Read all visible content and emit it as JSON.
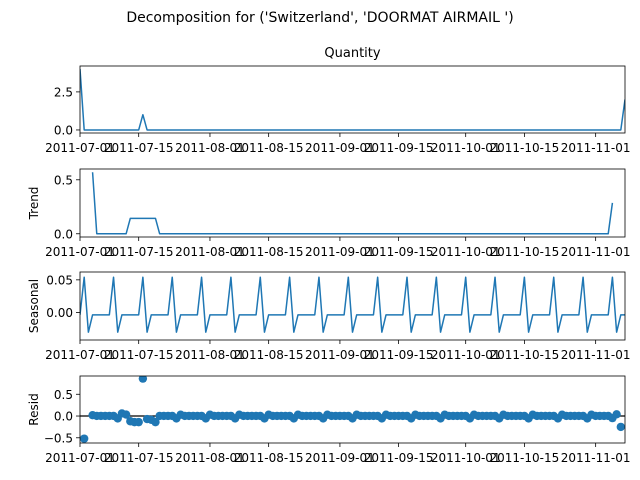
{
  "chart_data": {
    "type": "line",
    "suptitle": "Decomposition for ('Switzerland', 'DOORMAT AIRMAIL ')",
    "date_start": "2011-07-01",
    "date_end": "2011-11-08",
    "x_tick_dates": [
      "2011-07-01",
      "2011-07-15",
      "2011-08-01",
      "2011-08-15",
      "2011-09-01",
      "2011-09-15",
      "2011-10-01",
      "2011-10-15",
      "2011-11-01"
    ],
    "x_tick_labels": [
      "2011-07-01",
      "2011-07-15",
      "2011-08-01",
      "2011-08-15",
      "2011-09-01",
      "2011-09-15",
      "2011-10-01",
      "2011-10-15",
      "2011-11-01"
    ],
    "line_color": "#1f77b4",
    "panels": [
      {
        "id": "observed",
        "kind": "line",
        "title": "Quantity",
        "ylabel": "",
        "ylim": [
          -0.2,
          4.2
        ],
        "yticks": [
          0.0,
          2.5
        ],
        "ytick_labels": [
          "0.0",
          "2.5"
        ],
        "points": [
          [
            "2011-07-01",
            4.0
          ],
          [
            "2011-07-02",
            0.0
          ],
          [
            "2011-07-15",
            0.0
          ],
          [
            "2011-07-16",
            1.0
          ],
          [
            "2011-07-17",
            0.0
          ],
          [
            "2011-11-07",
            0.0
          ],
          [
            "2011-11-08",
            2.0
          ]
        ]
      },
      {
        "id": "trend",
        "kind": "line",
        "title": "",
        "ylabel": "Trend",
        "ylim": [
          -0.03,
          0.6
        ],
        "yticks": [
          0.0,
          0.5
        ],
        "ytick_labels": [
          "0.0",
          "0.5"
        ],
        "points": [
          [
            "2011-07-04",
            0.57
          ],
          [
            "2011-07-05",
            0.0
          ],
          [
            "2011-07-12",
            0.0
          ],
          [
            "2011-07-13",
            0.143
          ],
          [
            "2011-07-19",
            0.143
          ],
          [
            "2011-07-20",
            0.0
          ],
          [
            "2011-11-04",
            0.0
          ],
          [
            "2011-11-05",
            0.286
          ]
        ]
      },
      {
        "id": "seasonal",
        "kind": "seasonal",
        "title": "",
        "ylabel": "Seasonal",
        "ylim": [
          -0.042,
          0.062
        ],
        "yticks": [
          0.0,
          0.05
        ],
        "ytick_labels": [
          "0.00",
          "0.05"
        ],
        "pattern": [
          0.054,
          -0.03,
          -0.0035,
          -0.0035,
          -0.0035,
          -0.0035,
          -0.0035
        ],
        "pattern_start": "2011-07-02",
        "pattern_end": "2011-11-08",
        "lead_points": [
          [
            "2011-07-01",
            -0.0035
          ]
        ]
      },
      {
        "id": "resid",
        "kind": "scatter",
        "title": "",
        "ylabel": "Resid",
        "ylim": [
          -0.62,
          0.92
        ],
        "yticks": [
          -0.5,
          0.0,
          0.5
        ],
        "ytick_labels": [
          "−0.5",
          "0.0",
          "0.5"
        ],
        "zero_line": true,
        "points": [
          [
            "2011-07-04",
            0.02
          ],
          [
            "2011-07-05",
            0.003
          ],
          [
            "2011-07-06",
            0.003
          ],
          [
            "2011-07-07",
            0.003
          ],
          [
            "2011-07-08",
            0.003
          ],
          [
            "2011-07-09",
            0.003
          ],
          [
            "2011-07-10",
            -0.054
          ],
          [
            "2011-07-11",
            0.06
          ],
          [
            "2011-07-12",
            0.033
          ],
          [
            "2011-07-13",
            -0.12
          ],
          [
            "2011-07-14",
            -0.14
          ],
          [
            "2011-07-15",
            -0.14
          ],
          [
            "2011-07-16",
            0.86
          ],
          [
            "2011-07-17",
            -0.07
          ],
          [
            "2011-07-18",
            -0.086
          ],
          [
            "2011-07-19",
            -0.14
          ],
          [
            "2011-07-20",
            0.003
          ],
          [
            "2011-07-21",
            0.003
          ],
          [
            "2011-07-22",
            0.003
          ],
          [
            "2011-07-23",
            0.003
          ],
          [
            "2011-07-24",
            -0.054
          ],
          [
            "2011-07-25",
            0.03
          ],
          [
            "2011-07-26",
            0.003
          ],
          [
            "2011-07-27",
            0.003
          ],
          [
            "2011-07-28",
            0.003
          ],
          [
            "2011-07-29",
            0.003
          ],
          [
            "2011-07-30",
            0.003
          ],
          [
            "2011-07-31",
            -0.054
          ],
          [
            "2011-08-01",
            0.03
          ],
          [
            "2011-08-02",
            0.003
          ],
          [
            "2011-08-03",
            0.003
          ],
          [
            "2011-08-04",
            0.003
          ],
          [
            "2011-08-05",
            0.003
          ],
          [
            "2011-08-06",
            0.003
          ],
          [
            "2011-08-07",
            -0.054
          ],
          [
            "2011-08-08",
            0.03
          ],
          [
            "2011-08-09",
            0.003
          ],
          [
            "2011-08-10",
            0.003
          ],
          [
            "2011-08-11",
            0.003
          ],
          [
            "2011-08-12",
            0.003
          ],
          [
            "2011-08-13",
            0.003
          ],
          [
            "2011-08-14",
            -0.054
          ],
          [
            "2011-08-15",
            0.03
          ],
          [
            "2011-08-16",
            0.003
          ],
          [
            "2011-08-17",
            0.003
          ],
          [
            "2011-08-18",
            0.003
          ],
          [
            "2011-08-19",
            0.003
          ],
          [
            "2011-08-20",
            0.003
          ],
          [
            "2011-08-21",
            -0.054
          ],
          [
            "2011-08-22",
            0.03
          ],
          [
            "2011-08-23",
            0.003
          ],
          [
            "2011-08-24",
            0.003
          ],
          [
            "2011-08-25",
            0.003
          ],
          [
            "2011-08-26",
            0.003
          ],
          [
            "2011-08-27",
            0.003
          ],
          [
            "2011-08-28",
            -0.054
          ],
          [
            "2011-08-29",
            0.03
          ],
          [
            "2011-08-30",
            0.003
          ],
          [
            "2011-08-31",
            0.003
          ],
          [
            "2011-09-01",
            0.003
          ],
          [
            "2011-09-02",
            0.003
          ],
          [
            "2011-09-03",
            0.003
          ],
          [
            "2011-09-04",
            -0.054
          ],
          [
            "2011-09-05",
            0.03
          ],
          [
            "2011-09-06",
            0.003
          ],
          [
            "2011-09-07",
            0.003
          ],
          [
            "2011-09-08",
            0.003
          ],
          [
            "2011-09-09",
            0.003
          ],
          [
            "2011-09-10",
            0.003
          ],
          [
            "2011-09-11",
            -0.054
          ],
          [
            "2011-09-12",
            0.03
          ],
          [
            "2011-09-13",
            0.003
          ],
          [
            "2011-09-14",
            0.003
          ],
          [
            "2011-09-15",
            0.003
          ],
          [
            "2011-09-16",
            0.003
          ],
          [
            "2011-09-17",
            0.003
          ],
          [
            "2011-09-18",
            -0.054
          ],
          [
            "2011-09-19",
            0.03
          ],
          [
            "2011-09-20",
            0.003
          ],
          [
            "2011-09-21",
            0.003
          ],
          [
            "2011-09-22",
            0.003
          ],
          [
            "2011-09-23",
            0.003
          ],
          [
            "2011-09-24",
            0.003
          ],
          [
            "2011-09-25",
            -0.054
          ],
          [
            "2011-09-26",
            0.03
          ],
          [
            "2011-09-27",
            0.003
          ],
          [
            "2011-09-28",
            0.003
          ],
          [
            "2011-09-29",
            0.003
          ],
          [
            "2011-09-30",
            0.003
          ],
          [
            "2011-10-01",
            0.003
          ],
          [
            "2011-10-02",
            -0.054
          ],
          [
            "2011-10-03",
            0.03
          ],
          [
            "2011-10-04",
            0.003
          ],
          [
            "2011-10-05",
            0.003
          ],
          [
            "2011-10-06",
            0.003
          ],
          [
            "2011-10-07",
            0.003
          ],
          [
            "2011-10-08",
            0.003
          ],
          [
            "2011-10-09",
            -0.054
          ],
          [
            "2011-10-10",
            0.03
          ],
          [
            "2011-10-11",
            0.003
          ],
          [
            "2011-10-12",
            0.003
          ],
          [
            "2011-10-13",
            0.003
          ],
          [
            "2011-10-14",
            0.003
          ],
          [
            "2011-10-15",
            0.003
          ],
          [
            "2011-10-16",
            -0.054
          ],
          [
            "2011-10-17",
            0.03
          ],
          [
            "2011-10-18",
            0.003
          ],
          [
            "2011-10-19",
            0.003
          ],
          [
            "2011-10-20",
            0.003
          ],
          [
            "2011-10-21",
            0.003
          ],
          [
            "2011-10-22",
            0.003
          ],
          [
            "2011-10-23",
            -0.054
          ],
          [
            "2011-10-24",
            0.03
          ],
          [
            "2011-10-25",
            0.003
          ],
          [
            "2011-10-26",
            0.003
          ],
          [
            "2011-10-27",
            0.003
          ],
          [
            "2011-10-28",
            0.003
          ],
          [
            "2011-10-29",
            0.003
          ],
          [
            "2011-10-30",
            -0.054
          ],
          [
            "2011-10-31",
            0.03
          ],
          [
            "2011-11-01",
            0.003
          ],
          [
            "2011-11-02",
            0.003
          ],
          [
            "2011-11-03",
            0.003
          ],
          [
            "2011-11-04",
            0.003
          ],
          [
            "2011-11-05",
            -0.048
          ],
          [
            "2011-11-06",
            0.04
          ],
          [
            "2011-11-07",
            -0.25
          ]
        ],
        "extra_points": [
          [
            "2011-07-02",
            -0.52
          ]
        ]
      }
    ]
  }
}
